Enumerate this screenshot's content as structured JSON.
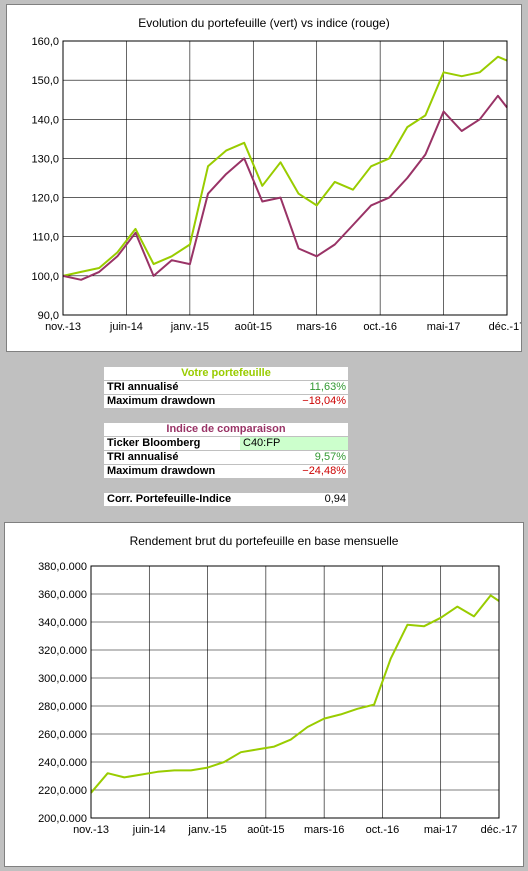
{
  "chart1": {
    "title": "Evolution du portefeuille (vert) vs indice (rouge)",
    "ylim": [
      90,
      160
    ],
    "y_ticks": [
      "90,0",
      "100,0",
      "110,0",
      "120,0",
      "130,0",
      "140,0",
      "150,0",
      "160,0"
    ],
    "x_ticks": [
      "nov.-13",
      "juin-14",
      "janv.-15",
      "août-15",
      "mars-16",
      "oct.-16",
      "mai-17",
      "déc.-17"
    ],
    "colors": {
      "portfolio": "#99cc00",
      "index": "#993366"
    }
  },
  "chart2": {
    "title": "Rendement brut du portefeuille en base mensuelle",
    "ylim": [
      200,
      380
    ],
    "y_ticks": [
      "200,0.000",
      "220,0.000",
      "240,0.000",
      "260,0.000",
      "280,0.000",
      "300,0.000",
      "320,0.000",
      "340,0.000",
      "360,0.000",
      "380,0.000"
    ],
    "x_ticks": [
      "nov.-13",
      "juin-14",
      "janv.-15",
      "août-15",
      "mars-16",
      "oct.-16",
      "mai-17",
      "déc.-17"
    ],
    "color": "#99cc00"
  },
  "chart_data": [
    {
      "type": "line",
      "title": "Evolution du portefeuille (vert) vs indice (rouge)",
      "x": [
        "2013-11",
        "2014-01",
        "2014-03",
        "2014-05",
        "2014-07",
        "2014-09",
        "2014-11",
        "2015-01",
        "2015-03",
        "2015-05",
        "2015-07",
        "2015-09",
        "2015-11",
        "2016-01",
        "2016-03",
        "2016-05",
        "2016-07",
        "2016-09",
        "2016-11",
        "2017-01",
        "2017-03",
        "2017-05",
        "2017-07",
        "2017-09",
        "2017-11",
        "2017-12"
      ],
      "series": [
        {
          "values": [
            100,
            101,
            102,
            106,
            112,
            103,
            105,
            108,
            128,
            132,
            134,
            123,
            129,
            121,
            118,
            124,
            122,
            128,
            130,
            138,
            141,
            152,
            151,
            152,
            156,
            155
          ]
        },
        {
          "values": [
            100,
            99,
            101,
            105,
            111,
            100,
            104,
            103,
            121,
            126,
            130,
            119,
            120,
            107,
            105,
            108,
            113,
            118,
            120,
            125,
            131,
            142,
            137,
            140,
            146,
            143
          ]
        }
      ],
      "ylim": [
        90,
        160
      ]
    },
    {
      "type": "line",
      "title": "Rendement brut du portefeuille en base mensuelle",
      "x": [
        "2013-11",
        "2014-01",
        "2014-03",
        "2014-05",
        "2014-07",
        "2014-09",
        "2014-11",
        "2015-01",
        "2015-03",
        "2015-05",
        "2015-07",
        "2015-09",
        "2015-11",
        "2016-01",
        "2016-03",
        "2016-05",
        "2016-07",
        "2016-09",
        "2016-11",
        "2017-01",
        "2017-03",
        "2017-05",
        "2017-07",
        "2017-09",
        "2017-11",
        "2017-12"
      ],
      "series": [
        {
          "values": [
            218,
            232,
            229,
            231,
            233,
            234,
            234,
            236,
            240,
            247,
            249,
            251,
            256,
            265,
            271,
            274,
            278,
            281,
            314,
            338,
            337,
            343,
            351,
            344,
            359,
            355
          ]
        }
      ],
      "ylim": [
        200,
        380
      ]
    }
  ],
  "table": {
    "portfolio_header": "Votre portefeuille",
    "tri_label": "TRI annualisé",
    "tri_value": "11,63%",
    "mdd_label": "Maximum drawdown",
    "mdd_value": "−18,04%",
    "index_header": "Indice de comparaison",
    "ticker_label": "Ticker Bloomberg",
    "ticker_value": "C40:FP",
    "index_tri_label": "TRI annualisé",
    "index_tri_value": "9,57%",
    "index_mdd_label": "Maximum drawdown",
    "index_mdd_value": "−24,48%",
    "corr_label": "Corr. Portefeuille-Indice",
    "corr_value": "0,94",
    "colors": {
      "green": "#99cc00",
      "purple": "#993366",
      "pos": "#339933",
      "neg": "#cc0000",
      "ticker_bg": "#ccffcc"
    }
  }
}
